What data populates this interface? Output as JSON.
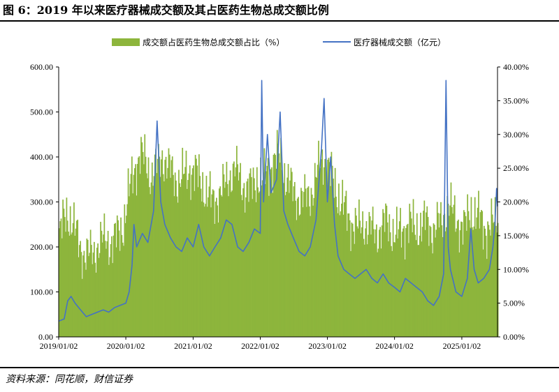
{
  "figure": {
    "title": "图 6：2019 年以来医疗器械成交额及其占医药生物总成交额比例",
    "source": "资料来源：同花顺，财信证券"
  },
  "chart_data": {
    "type": "bar+line",
    "legend_placement": "top-center",
    "grid": false,
    "x_ticks": [
      "2019/01/02",
      "2020/01/02",
      "2021/01/02",
      "2022/01/02",
      "2023/01/02",
      "2024/01/02",
      "2025/01/02"
    ],
    "x_range": [
      "2019/01/02",
      "2025/07/15"
    ],
    "left_axis": {
      "ticks": [
        "0.00",
        "100.00",
        "200.00",
        "300.00",
        "400.00",
        "500.00",
        "600.00"
      ],
      "ylim": [
        0,
        600
      ]
    },
    "right_axis": {
      "ticks": [
        "0.00%",
        "5.00%",
        "10.00%",
        "15.00%",
        "20.00%",
        "25.00%",
        "30.00%",
        "35.00%",
        "40.00%"
      ],
      "ylim": [
        0,
        40
      ]
    },
    "colors": {
      "share": "#8db53c",
      "turnover": "#4472c4"
    },
    "series": [
      {
        "name": "成交额占医药生物总成交额占比（%）",
        "axis": "right",
        "kind": "area-bars",
        "points": [
          [
            "2019/01/02",
            15.0
          ],
          [
            "2019/02/15",
            18.5
          ],
          [
            "2019/03/15",
            17.0
          ],
          [
            "2019/04/15",
            14.0
          ],
          [
            "2019/05/15",
            12.5
          ],
          [
            "2019/06/15",
            12.0
          ],
          [
            "2019/07/15",
            13.0
          ],
          [
            "2019/08/15",
            14.0
          ],
          [
            "2019/09/15",
            14.5
          ],
          [
            "2019/10/15",
            14.0
          ],
          [
            "2019/11/15",
            15.0
          ],
          [
            "2019/12/15",
            16.5
          ],
          [
            "2020/01/15",
            21.0
          ],
          [
            "2020/02/15",
            25.0
          ],
          [
            "2020/03/15",
            27.0
          ],
          [
            "2020/04/15",
            26.0
          ],
          [
            "2020/05/15",
            24.0
          ],
          [
            "2020/06/15",
            25.0
          ],
          [
            "2020/07/15",
            27.0
          ],
          [
            "2020/08/15",
            25.0
          ],
          [
            "2020/09/15",
            24.0
          ],
          [
            "2020/10/15",
            23.0
          ],
          [
            "2020/11/15",
            24.0
          ],
          [
            "2020/12/15",
            25.0
          ],
          [
            "2021/01/15",
            24.0
          ],
          [
            "2021/02/15",
            23.0
          ],
          [
            "2021/03/15",
            21.0
          ],
          [
            "2021/04/15",
            20.0
          ],
          [
            "2021/05/15",
            21.0
          ],
          [
            "2021/06/15",
            22.0
          ],
          [
            "2021/07/15",
            24.0
          ],
          [
            "2021/08/15",
            25.0
          ],
          [
            "2021/09/15",
            23.0
          ],
          [
            "2021/10/15",
            22.0
          ],
          [
            "2021/11/15",
            22.0
          ],
          [
            "2021/12/15",
            24.0
          ],
          [
            "2022/01/15",
            23.0
          ],
          [
            "2022/02/15",
            25.0
          ],
          [
            "2022/03/15",
            26.0
          ],
          [
            "2022/04/15",
            27.0
          ],
          [
            "2022/05/15",
            24.0
          ],
          [
            "2022/06/15",
            22.0
          ],
          [
            "2022/07/15",
            21.0
          ],
          [
            "2022/08/15",
            20.0
          ],
          [
            "2022/09/15",
            21.0
          ],
          [
            "2022/10/15",
            22.0
          ],
          [
            "2022/11/15",
            25.0
          ],
          [
            "2022/12/15",
            27.0
          ],
          [
            "2023/01/15",
            24.0
          ],
          [
            "2023/02/15",
            22.0
          ],
          [
            "2023/03/15",
            20.0
          ],
          [
            "2023/04/15",
            18.0
          ],
          [
            "2023/05/15",
            17.0
          ],
          [
            "2023/06/15",
            16.0
          ],
          [
            "2023/07/15",
            17.0
          ],
          [
            "2023/08/15",
            16.0
          ],
          [
            "2023/09/15",
            15.5
          ],
          [
            "2023/10/15",
            16.0
          ],
          [
            "2023/11/15",
            17.0
          ],
          [
            "2023/12/15",
            16.0
          ],
          [
            "2024/01/15",
            15.0
          ],
          [
            "2024/02/15",
            16.0
          ],
          [
            "2024/03/15",
            17.0
          ],
          [
            "2024/04/15",
            16.0
          ],
          [
            "2024/05/15",
            16.5
          ],
          [
            "2024/06/15",
            17.0
          ],
          [
            "2024/07/15",
            16.0
          ],
          [
            "2024/08/15",
            16.5
          ],
          [
            "2024/09/15",
            17.0
          ],
          [
            "2024/10/15",
            20.0
          ],
          [
            "2024/11/15",
            18.0
          ],
          [
            "2024/12/15",
            17.0
          ],
          [
            "2025/01/15",
            16.0
          ],
          [
            "2025/02/15",
            19.0
          ],
          [
            "2025/03/15",
            18.0
          ],
          [
            "2025/04/15",
            17.0
          ],
          [
            "2025/05/15",
            16.0
          ],
          [
            "2025/06/15",
            16.5
          ],
          [
            "2025/07/15",
            18.0
          ]
        ]
      },
      {
        "name": "医疗器械成交额（亿元）",
        "axis": "left",
        "kind": "line",
        "points": [
          [
            "2019/01/02",
            35
          ],
          [
            "2019/02/01",
            40
          ],
          [
            "2019/02/20",
            80
          ],
          [
            "2019/03/10",
            90
          ],
          [
            "2019/04/01",
            75
          ],
          [
            "2019/05/01",
            60
          ],
          [
            "2019/06/01",
            45
          ],
          [
            "2019/07/01",
            50
          ],
          [
            "2019/08/01",
            55
          ],
          [
            "2019/09/01",
            60
          ],
          [
            "2019/10/01",
            55
          ],
          [
            "2019/11/01",
            65
          ],
          [
            "2019/12/01",
            70
          ],
          [
            "2020/01/02",
            75
          ],
          [
            "2020/01/20",
            100
          ],
          [
            "2020/02/05",
            160
          ],
          [
            "2020/02/15",
            250
          ],
          [
            "2020/03/01",
            200
          ],
          [
            "2020/04/01",
            230
          ],
          [
            "2020/05/01",
            210
          ],
          [
            "2020/06/01",
            280
          ],
          [
            "2020/06/20",
            480
          ],
          [
            "2020/07/10",
            300
          ],
          [
            "2020/08/01",
            250
          ],
          [
            "2020/09/01",
            220
          ],
          [
            "2020/10/01",
            200
          ],
          [
            "2020/11/01",
            190
          ],
          [
            "2020/12/01",
            220
          ],
          [
            "2021/01/02",
            200
          ],
          [
            "2021/02/01",
            250
          ],
          [
            "2021/03/01",
            200
          ],
          [
            "2021/04/01",
            180
          ],
          [
            "2021/05/01",
            200
          ],
          [
            "2021/06/01",
            220
          ],
          [
            "2021/07/01",
            260
          ],
          [
            "2021/08/01",
            250
          ],
          [
            "2021/09/01",
            200
          ],
          [
            "2021/10/01",
            190
          ],
          [
            "2021/11/01",
            210
          ],
          [
            "2021/12/01",
            240
          ],
          [
            "2022/01/02",
            230
          ],
          [
            "2022/01/10",
            570
          ],
          [
            "2022/01/20",
            300
          ],
          [
            "2022/02/10",
            450
          ],
          [
            "2022/03/01",
            320
          ],
          [
            "2022/04/01",
            350
          ],
          [
            "2022/04/20",
            500
          ],
          [
            "2022/05/10",
            280
          ],
          [
            "2022/06/01",
            250
          ],
          [
            "2022/07/01",
            220
          ],
          [
            "2022/08/01",
            190
          ],
          [
            "2022/09/01",
            180
          ],
          [
            "2022/10/01",
            200
          ],
          [
            "2022/11/01",
            260
          ],
          [
            "2022/12/01",
            420
          ],
          [
            "2022/12/15",
            530
          ],
          [
            "2023/01/02",
            300
          ],
          [
            "2023/01/20",
            400
          ],
          [
            "2023/02/10",
            250
          ],
          [
            "2023/03/01",
            180
          ],
          [
            "2023/04/01",
            150
          ],
          [
            "2023/05/01",
            140
          ],
          [
            "2023/06/01",
            130
          ],
          [
            "2023/07/01",
            140
          ],
          [
            "2023/08/01",
            150
          ],
          [
            "2023/09/01",
            130
          ],
          [
            "2023/10/01",
            120
          ],
          [
            "2023/11/01",
            140
          ],
          [
            "2023/12/01",
            120
          ],
          [
            "2024/01/02",
            110
          ],
          [
            "2024/02/01",
            100
          ],
          [
            "2024/03/01",
            130
          ],
          [
            "2024/04/01",
            120
          ],
          [
            "2024/05/01",
            110
          ],
          [
            "2024/06/01",
            100
          ],
          [
            "2024/07/01",
            80
          ],
          [
            "2024/08/01",
            70
          ],
          [
            "2024/09/01",
            90
          ],
          [
            "2024/09/25",
            140
          ],
          [
            "2024/10/08",
            570
          ],
          [
            "2024/10/20",
            200
          ],
          [
            "2024/11/01",
            150
          ],
          [
            "2024/12/01",
            100
          ],
          [
            "2025/01/02",
            90
          ],
          [
            "2025/02/01",
            130
          ],
          [
            "2025/02/20",
            240
          ],
          [
            "2025/03/10",
            150
          ],
          [
            "2025/04/01",
            120
          ],
          [
            "2025/05/01",
            130
          ],
          [
            "2025/06/01",
            150
          ],
          [
            "2025/06/20",
            200
          ],
          [
            "2025/07/01",
            250
          ],
          [
            "2025/07/10",
            330
          ],
          [
            "2025/07/15",
            290
          ]
        ]
      }
    ]
  }
}
